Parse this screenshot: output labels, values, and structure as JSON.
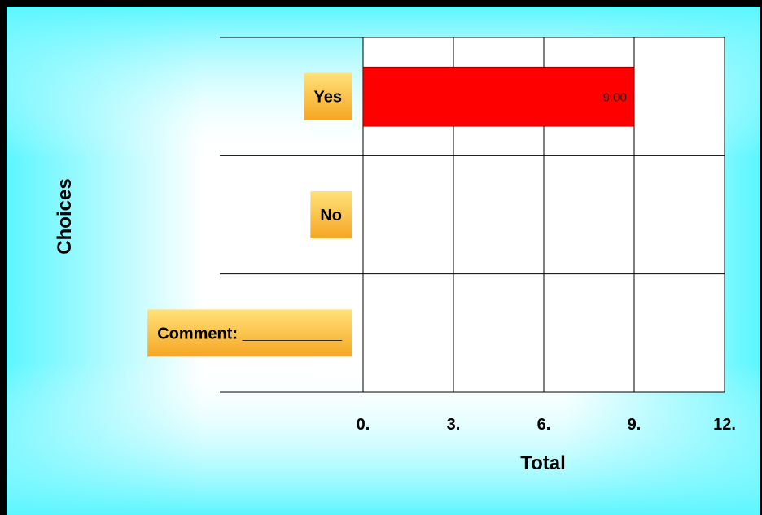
{
  "chart_data": {
    "type": "bar",
    "orientation": "horizontal",
    "categories": [
      "Yes",
      "No",
      "Comment: ___________"
    ],
    "values": [
      9,
      0,
      0
    ],
    "data_labels": [
      "9.00",
      "",
      ""
    ],
    "xlabel": "Total",
    "ylabel": "Choices",
    "xlim": [
      0,
      12
    ],
    "xticks": [
      0,
      3,
      6,
      9,
      12
    ],
    "xtick_labels": [
      "0.",
      "3.",
      "6.",
      "9.",
      "12."
    ],
    "grid": true,
    "legend": "none",
    "colors": {
      "bar": "#ff0000",
      "label_box_top": "#ffe27a",
      "label_box_bottom": "#f6a623",
      "background_edge": "#5cf6ff",
      "background_center": "#ffffff"
    }
  }
}
